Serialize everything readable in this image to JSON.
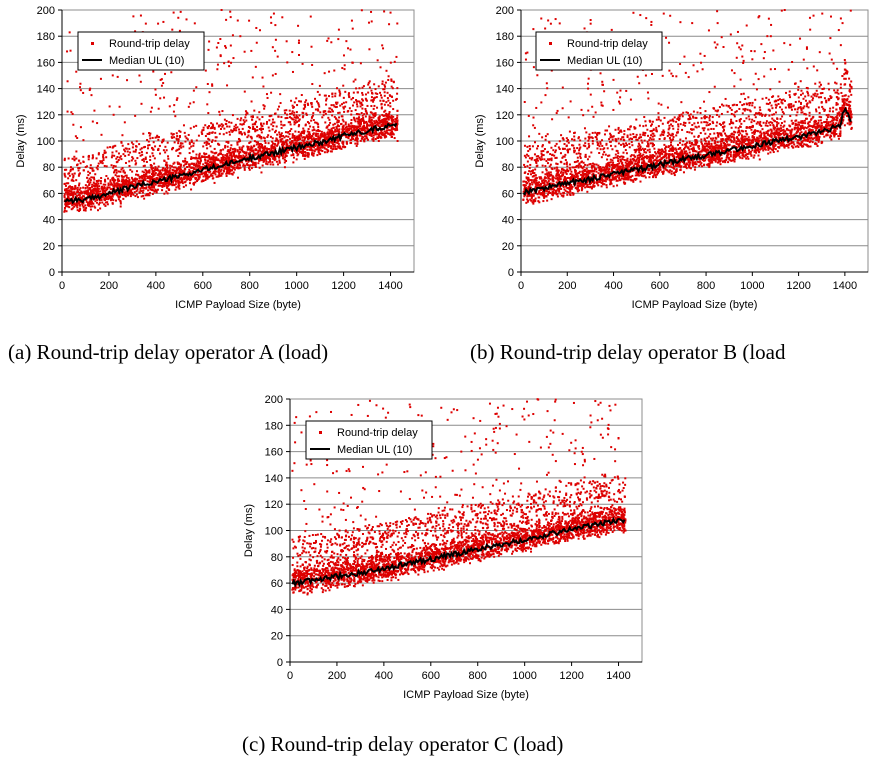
{
  "colors": {
    "points": "#dd0000",
    "median": "#000000",
    "grid": "#8c8c8c",
    "axis": "#000000"
  },
  "captions": {
    "a": "(a) Round-trip delay operator A (load)",
    "b": "(b) Round-trip delay operator B (load",
    "c": "(c) Round-trip delay operator C (load)"
  },
  "chart_data": [
    {
      "type": "scatter",
      "title": "",
      "xlabel": "ICMP Payload Size (byte)",
      "ylabel": "Delay (ms)",
      "xlim": [
        0,
        1500
      ],
      "ylim": [
        0,
        200
      ],
      "xticks": [
        "0",
        "200",
        "400",
        "600",
        "800",
        "1000",
        "1200",
        "1400"
      ],
      "yticks": [
        "0",
        "20",
        "40",
        "60",
        "80",
        "100",
        "120",
        "140",
        "160",
        "180",
        "200"
      ],
      "grid": "horizontal",
      "legend_position": "top-left",
      "series": [
        {
          "name": "Round-trip delay",
          "kind": "scatter",
          "color": "#dd0000",
          "x": [
            10,
            50,
            100,
            150,
            200,
            250,
            300,
            350,
            400,
            450,
            500,
            550,
            600,
            650,
            700,
            750,
            800,
            850,
            900,
            950,
            1000,
            1050,
            1100,
            1150,
            1200,
            1250,
            1300,
            1350,
            1400,
            1430,
            40,
            120,
            220,
            330,
            470,
            560,
            680,
            760,
            830,
            960,
            1060,
            1180,
            1310,
            1400
          ],
          "y": [
            46,
            52,
            48,
            55,
            58,
            50,
            60,
            56,
            62,
            60,
            66,
            63,
            70,
            68,
            75,
            72,
            78,
            76,
            82,
            80,
            86,
            88,
            90,
            92,
            96,
            98,
            102,
            100,
            106,
            100,
            122,
            140,
            120,
            150,
            185,
            165,
            200,
            180,
            175,
            160,
            195,
            185,
            170,
            198
          ]
        },
        {
          "name": "Median UL (10)",
          "kind": "line",
          "color": "#000000",
          "x": [
            10,
            100,
            200,
            300,
            400,
            500,
            600,
            700,
            800,
            900,
            1000,
            1100,
            1200,
            1300,
            1400,
            1430
          ],
          "y": [
            55,
            55,
            60,
            65,
            69,
            73,
            78,
            82,
            87,
            91,
            95,
            99,
            104,
            108,
            112,
            112
          ]
        }
      ]
    },
    {
      "type": "scatter",
      "title": "",
      "xlabel": "ICMP Payload Size (byte)",
      "ylabel": "Delay (ms)",
      "xlim": [
        0,
        1500
      ],
      "ylim": [
        0,
        200
      ],
      "xticks": [
        "0",
        "200",
        "400",
        "600",
        "800",
        "1000",
        "1200",
        "1400"
      ],
      "yticks": [
        "0",
        "20",
        "40",
        "60",
        "80",
        "100",
        "120",
        "140",
        "160",
        "180",
        "200"
      ],
      "grid": "horizontal",
      "legend_position": "top-left",
      "series": [
        {
          "name": "Round-trip delay",
          "kind": "scatter",
          "color": "#dd0000",
          "x": [
            10,
            50,
            100,
            150,
            200,
            250,
            300,
            350,
            400,
            450,
            500,
            550,
            600,
            650,
            700,
            750,
            800,
            850,
            900,
            950,
            1000,
            1050,
            1100,
            1150,
            1200,
            1250,
            1300,
            1350,
            1400,
            1430,
            60,
            180,
            290,
            420,
            540,
            640,
            740,
            850,
            950,
            1080,
            1140,
            1250,
            1340,
            1390
          ],
          "y": [
            55,
            58,
            60,
            62,
            64,
            66,
            68,
            70,
            72,
            74,
            76,
            78,
            80,
            82,
            84,
            86,
            88,
            90,
            92,
            94,
            96,
            98,
            100,
            102,
            104,
            106,
            108,
            110,
            112,
            110,
            110,
            125,
            140,
            160,
            150,
            175,
            190,
            190,
            170,
            180,
            200,
            185,
            195,
            190
          ]
        },
        {
          "name": "Median UL (10)",
          "kind": "line",
          "color": "#000000",
          "x": [
            10,
            100,
            200,
            300,
            400,
            500,
            600,
            700,
            800,
            900,
            1000,
            1100,
            1200,
            1300,
            1380,
            1400,
            1430
          ],
          "y": [
            61,
            64,
            68,
            71,
            75,
            78,
            82,
            86,
            89,
            93,
            96,
            100,
            103,
            107,
            112,
            127,
            114
          ]
        }
      ]
    },
    {
      "type": "scatter",
      "title": "",
      "xlabel": "ICMP Payload Size (byte)",
      "ylabel": "Delay (ms)",
      "xlim": [
        0,
        1500
      ],
      "ylim": [
        0,
        200
      ],
      "xticks": [
        "0",
        "200",
        "400",
        "600",
        "800",
        "1000",
        "1200",
        "1400"
      ],
      "yticks": [
        "0",
        "20",
        "40",
        "60",
        "80",
        "100",
        "120",
        "140",
        "160",
        "180",
        "200"
      ],
      "grid": "horizontal",
      "legend_position": "top-left",
      "series": [
        {
          "name": "Round-trip delay",
          "kind": "scatter",
          "color": "#dd0000",
          "x": [
            10,
            50,
            100,
            150,
            200,
            250,
            300,
            350,
            400,
            450,
            500,
            550,
            600,
            650,
            700,
            750,
            800,
            850,
            900,
            950,
            1000,
            1050,
            1100,
            1150,
            1200,
            1250,
            1300,
            1350,
            1400,
            1430,
            70,
            160,
            260,
            380,
            500,
            620,
            730,
            870,
            910,
            1010,
            1130,
            1210,
            1330,
            1400
          ],
          "y": [
            55,
            56,
            57,
            58,
            60,
            61,
            62,
            64,
            65,
            66,
            68,
            70,
            72,
            73,
            75,
            77,
            79,
            80,
            82,
            84,
            86,
            88,
            90,
            92,
            94,
            95,
            97,
            99,
            101,
            100,
            105,
            110,
            125,
            130,
            145,
            155,
            160,
            175,
            195,
            198,
            198,
            197,
            185,
            170
          ]
        },
        {
          "name": "Median UL (10)",
          "kind": "line",
          "color": "#000000",
          "x": [
            10,
            100,
            200,
            300,
            400,
            500,
            600,
            700,
            800,
            900,
            1000,
            1100,
            1200,
            1300,
            1400,
            1430
          ],
          "y": [
            60,
            62,
            65,
            68,
            71,
            75,
            78,
            82,
            86,
            89,
            93,
            97,
            101,
            104,
            108,
            108
          ]
        }
      ]
    }
  ]
}
